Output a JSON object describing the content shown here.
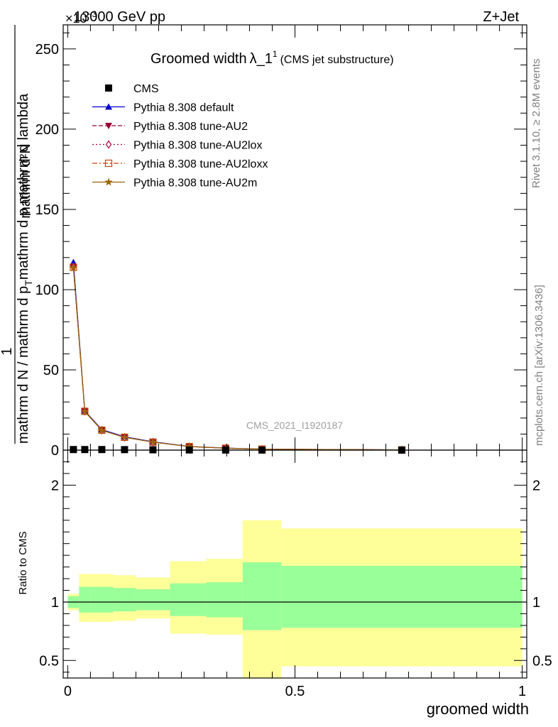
{
  "header": {
    "energy": "13000 GeV pp",
    "process": "Z+Jet",
    "exponent": "×10",
    "exponent_sup": "−3"
  },
  "side_text": {
    "rivet": "Rivet 3.1.10, ≥ 2.8M events",
    "mcplots": "mcplots.cern.ch [arXiv:1306.3436]"
  },
  "chart_data": [
    {
      "type": "line",
      "title_main": "Groomed width",
      "title_symbol": "λ_1",
      "title_sup": "1",
      "title_sub": "(CMS jet substructure)",
      "ylabel_numerator": "mathrm d²N",
      "ylabel_fraction_one": "1",
      "ylabel_denominator_left": "mathrm d N / mathrm d p",
      "ylabel_denominator_right": "mathrm d p  mathrm d lambda",
      "ylabel_denominator_sub": "T",
      "ylim": [
        0,
        265
      ],
      "xlim": [
        -0.01,
        1.01
      ],
      "yticks": [
        0,
        50,
        100,
        150,
        200,
        250
      ],
      "ytick_labels": [
        "0",
        "50",
        "100",
        "150",
        "200",
        "250"
      ],
      "analysis_label": "CMS_2021_I1920187",
      "legend_position": "top-left",
      "x": [
        0.0125,
        0.0375,
        0.075,
        0.125,
        0.1875,
        0.2675,
        0.3475,
        0.4275,
        0.735
      ],
      "data": {
        "name": "CMS",
        "values": [
          0.35,
          0.35,
          0.35,
          0.3,
          0.2,
          0.1,
          0.05,
          0.03,
          0.01
        ]
      },
      "series": [
        {
          "name": "Pythia 8.308 default",
          "color": "#0000cc",
          "marker": "triangle",
          "dash": "solid",
          "values": [
            117.0,
            24.5,
            12.8,
            8.3,
            5.2,
            2.3,
            1.3,
            0.6,
            0.15
          ]
        },
        {
          "name": "Pythia 8.308 tune-AU2",
          "color": "#990033",
          "marker": "triangle-down",
          "dash": "dashed",
          "values": [
            114.0,
            24.2,
            12.4,
            8.0,
            5.0,
            2.2,
            1.2,
            0.6,
            0.15
          ]
        },
        {
          "name": "Pythia 8.308 tune-AU2lox",
          "color": "#aa0044",
          "marker": "diamond-open",
          "dash": "dotted",
          "values": [
            114.0,
            24.2,
            12.4,
            8.0,
            5.0,
            2.2,
            1.2,
            0.6,
            0.15
          ]
        },
        {
          "name": "Pythia 8.308 tune-AU2loxx",
          "color": "#cc4400",
          "marker": "square-open",
          "dash": "dashdot",
          "values": [
            114.0,
            24.2,
            12.4,
            8.0,
            5.0,
            2.2,
            1.2,
            0.6,
            0.15
          ]
        },
        {
          "name": "Pythia 8.308 tune-AU2m",
          "color": "#996600",
          "marker": "star",
          "dash": "solid",
          "values": [
            113.5,
            24.0,
            12.3,
            8.0,
            5.0,
            2.2,
            1.2,
            0.6,
            0.15
          ]
        }
      ]
    },
    {
      "type": "area",
      "ylabel": "Ratio to CMS",
      "xlabel": "groomed width",
      "ylim": [
        0.35,
        2.3
      ],
      "xlim": [
        -0.01,
        1.01
      ],
      "yticks": [
        0.5,
        1,
        2
      ],
      "ytick_labels": [
        "0.5",
        "1",
        "2"
      ],
      "xticks": [
        0,
        0.5,
        1
      ],
      "xtick_labels": [
        "0",
        "0.5",
        "1"
      ],
      "reference": 1,
      "bins": [
        {
          "x0": 0.0,
          "x1": 0.025,
          "green": [
            0.95,
            1.05
          ],
          "yellow": [
            0.93,
            1.07
          ]
        },
        {
          "x0": 0.025,
          "x1": 0.05,
          "green": [
            0.91,
            1.13
          ],
          "yellow": [
            0.83,
            1.24
          ]
        },
        {
          "x0": 0.05,
          "x1": 0.1,
          "green": [
            0.91,
            1.13
          ],
          "yellow": [
            0.83,
            1.24
          ]
        },
        {
          "x0": 0.1,
          "x1": 0.15,
          "green": [
            0.92,
            1.12
          ],
          "yellow": [
            0.84,
            1.23
          ]
        },
        {
          "x0": 0.15,
          "x1": 0.225,
          "green": [
            0.93,
            1.11
          ],
          "yellow": [
            0.86,
            1.21
          ]
        },
        {
          "x0": 0.225,
          "x1": 0.305,
          "green": [
            0.88,
            1.16
          ],
          "yellow": [
            0.73,
            1.35
          ]
        },
        {
          "x0": 0.305,
          "x1": 0.385,
          "green": [
            0.87,
            1.17
          ],
          "yellow": [
            0.72,
            1.37
          ]
        },
        {
          "x0": 0.385,
          "x1": 0.47,
          "green": [
            0.76,
            1.34
          ],
          "yellow": [
            0.3,
            1.7
          ]
        },
        {
          "x0": 0.47,
          "x1": 1.0,
          "green": [
            0.78,
            1.31
          ],
          "yellow": [
            0.45,
            1.63
          ]
        }
      ]
    }
  ]
}
